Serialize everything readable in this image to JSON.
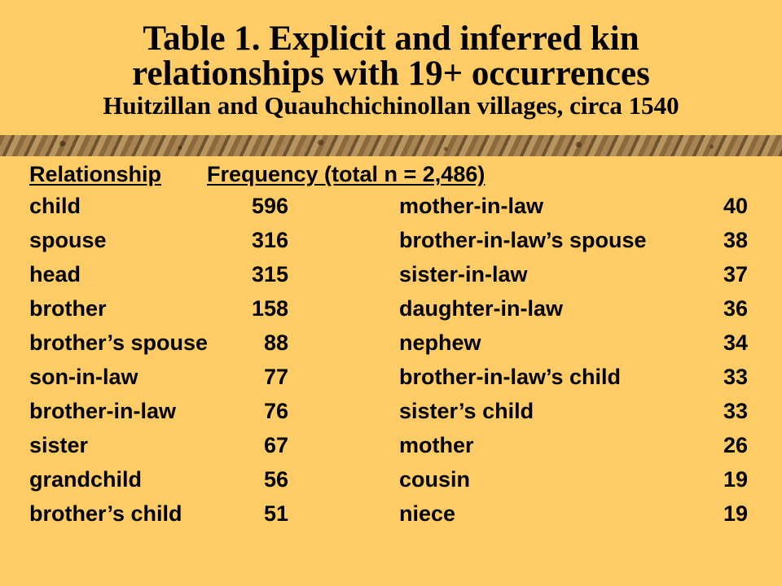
{
  "title": {
    "line1": "Table 1.  Explicit and inferred kin",
    "line2": "relationships with 19+ occurrences",
    "subtitle": "Huitzillan and Quauhchichinollan villages, circa 1540"
  },
  "table": {
    "header": {
      "relationship": "Relationship",
      "frequency": "Frequency (total n = 2,486)"
    },
    "left_rows": [
      {
        "relationship": "child",
        "count": "596"
      },
      {
        "relationship": "spouse",
        "count": "316"
      },
      {
        "relationship": "head",
        "count": "315"
      },
      {
        "relationship": "brother",
        "count": "158"
      },
      {
        "relationship": "brother’s spouse",
        "count": "88"
      },
      {
        "relationship": "son-in-law",
        "count": "77"
      },
      {
        "relationship": "brother-in-law",
        "count": "76"
      },
      {
        "relationship": "sister",
        "count": "67"
      },
      {
        "relationship": "grandchild",
        "count": "56"
      },
      {
        "relationship": "brother’s child",
        "count": "51"
      }
    ],
    "right_rows": [
      {
        "relationship": "mother-in-law",
        "count": "40"
      },
      {
        "relationship": "brother-in-law’s spouse",
        "count": "38"
      },
      {
        "relationship": "sister-in-law",
        "count": "37"
      },
      {
        "relationship": "daughter-in-law",
        "count": "36"
      },
      {
        "relationship": "nephew",
        "count": "34"
      },
      {
        "relationship": "brother-in-law’s child",
        "count": "33"
      },
      {
        "relationship": "sister’s child",
        "count": "33"
      },
      {
        "relationship": "mother",
        "count": "26"
      },
      {
        "relationship": "cousin",
        "count": "19"
      },
      {
        "relationship": "niece",
        "count": "19"
      }
    ]
  },
  "colors": {
    "background": "#FFCC66",
    "text": "#000000",
    "divider": "#8A6A3C"
  }
}
